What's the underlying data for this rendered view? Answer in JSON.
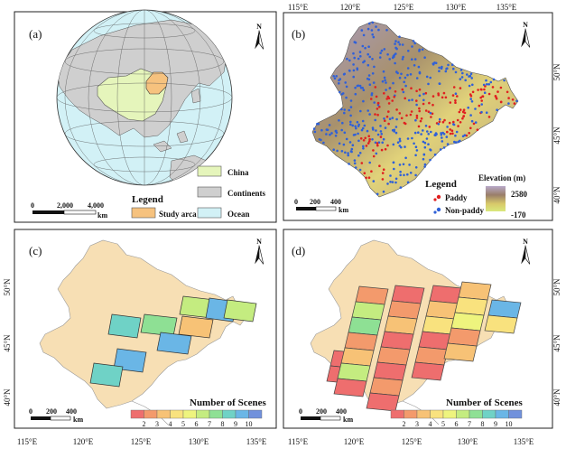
{
  "panel_labels": [
    "(a)",
    "(b)",
    "(c)",
    "(d)"
  ],
  "north": "N",
  "lon_ticks": [
    "115°E",
    "120°E",
    "125°E",
    "130°E",
    "135°E"
  ],
  "lat_ticks": [
    "50°N",
    "45°N",
    "40°N"
  ],
  "scale": {
    "a": [
      "0",
      "2,000",
      "4,000"
    ],
    "a_unit": "km",
    "b": [
      "0",
      "200",
      "400"
    ],
    "b_unit": "km"
  },
  "legend_a": {
    "title": "Legend",
    "items": [
      "China",
      "Continents",
      "Study arca",
      "Ocean"
    ]
  },
  "legend_b": {
    "title": "Legend",
    "items": [
      "Paddy",
      "Non-paddy"
    ],
    "elev_title": "Elevation (m)",
    "elev_max": "2580",
    "elev_min": "-170"
  },
  "scenes": {
    "title": "Number of Scenes",
    "ticks": [
      "2",
      "3",
      "4",
      "5",
      "6",
      "7",
      "8",
      "9",
      "10"
    ],
    "colors": [
      "#ee6e6e",
      "#f39a6c",
      "#f7c276",
      "#f9e27e",
      "#eef47e",
      "#c4ec80",
      "#8ee094",
      "#6fd2c6",
      "#6ab6e6",
      "#7191dc"
    ]
  },
  "colors": {
    "ocean": "#d2f1f6",
    "continent": "#cfcfcf",
    "china": "#e5f5bb",
    "study": "#f6c27e",
    "land": "#f7dfb4",
    "paddy": "#e02020",
    "nonpaddy": "#2f60d8"
  }
}
